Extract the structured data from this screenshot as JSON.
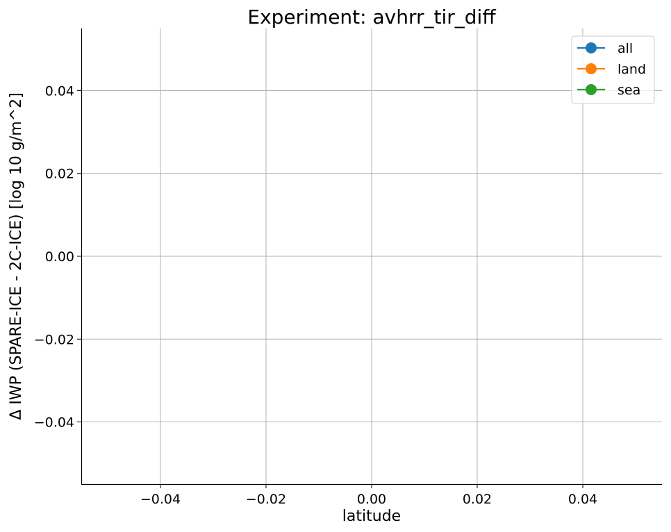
{
  "chart_data": {
    "type": "line",
    "title": "Experiment: avhrr_tir_diff",
    "xlabel": "latitude",
    "ylabel": "Δ IWP (SPARE-ICE - 2C-ICE) [log 10 g/m^2]",
    "xlim": [
      -0.055,
      0.055
    ],
    "ylim": [
      -0.055,
      0.055
    ],
    "x_ticks": [
      -0.04,
      -0.02,
      0.0,
      0.02,
      0.04
    ],
    "y_ticks": [
      -0.04,
      -0.02,
      0.0,
      0.02,
      0.04
    ],
    "x_tick_labels": [
      "−0.04",
      "−0.02",
      "0.00",
      "0.02",
      "0.04"
    ],
    "y_tick_labels": [
      "−0.04",
      "−0.02",
      "0.00",
      "0.02",
      "0.04"
    ],
    "grid": true,
    "legend_position": "top-right",
    "series": [
      {
        "name": "all",
        "color": "#1f77b4",
        "x": [],
        "y": []
      },
      {
        "name": "land",
        "color": "#ff7f0e",
        "x": [],
        "y": []
      },
      {
        "name": "sea",
        "color": "#2ca02c",
        "x": [],
        "y": []
      }
    ]
  }
}
